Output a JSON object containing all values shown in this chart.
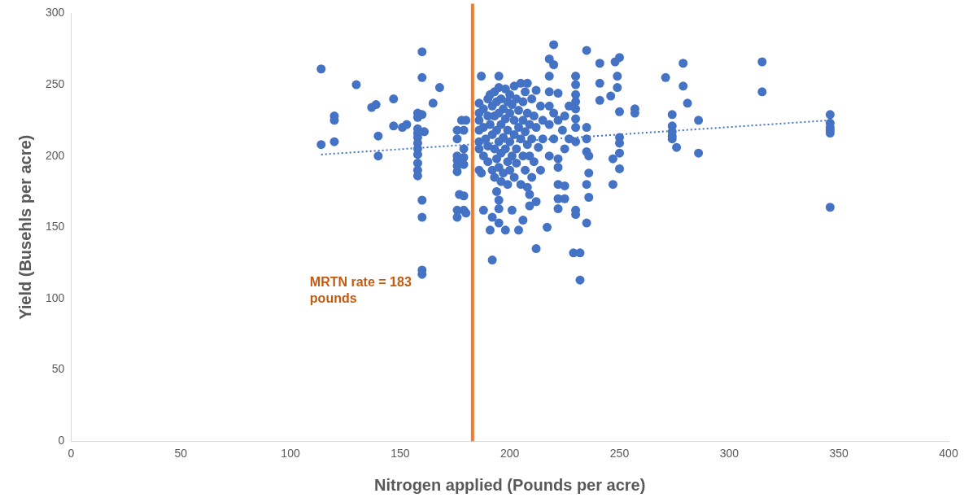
{
  "chart_data": {
    "type": "scatter",
    "xlabel": "Nitrogen applied (Pounds per acre)",
    "ylabel": "Yield (Busehls per acre)",
    "xlim": [
      0,
      400
    ],
    "xticks": [
      0,
      50,
      100,
      150,
      200,
      250,
      300,
      350,
      400
    ],
    "ylim": [
      0,
      300
    ],
    "yticks": [
      0,
      50,
      100,
      150,
      200,
      250,
      300
    ],
    "grid": false,
    "legend": false,
    "marker": "circle",
    "ref_lines": [
      {
        "axis": "x",
        "value": 183,
        "label": "MRTN rate = 183 pounds",
        "color": "#ed7d31"
      }
    ],
    "series": [
      {
        "color": "#4472c4",
        "x": [
          114,
          114,
          120,
          120,
          120,
          130,
          137,
          139,
          140,
          140,
          147,
          147,
          151,
          153,
          158,
          158,
          158,
          158,
          158,
          158,
          158,
          158,
          158,
          158,
          158,
          160,
          160,
          160,
          161,
          160,
          160,
          160,
          160,
          165,
          168,
          176,
          176,
          176,
          176,
          176,
          176,
          176,
          176,
          177,
          178,
          179,
          179,
          179,
          179,
          179,
          179,
          180,
          180,
          186,
          186,
          186,
          186,
          186,
          186,
          186,
          187,
          187,
          188,
          188,
          188,
          188,
          189,
          190,
          190,
          190,
          190,
          191,
          191,
          191,
          192,
          192,
          192,
          192,
          192,
          193,
          193,
          193,
          193,
          194,
          194,
          194,
          194,
          195,
          195,
          195,
          195,
          195,
          195,
          195,
          195,
          196,
          196,
          196,
          196,
          197,
          197,
          197,
          198,
          198,
          198,
          198,
          199,
          199,
          199,
          199,
          200,
          200,
          200,
          200,
          201,
          201,
          201,
          202,
          202,
          202,
          202,
          203,
          203,
          203,
          204,
          204,
          204,
          205,
          205,
          205,
          206,
          206,
          206,
          206,
          207,
          207,
          207,
          208,
          208,
          208,
          208,
          209,
          209,
          209,
          209,
          210,
          210,
          210,
          211,
          211,
          212,
          212,
          212,
          212,
          213,
          214,
          214,
          215,
          215,
          217,
          218,
          218,
          218,
          218,
          218,
          218,
          220,
          220,
          220,
          220,
          222,
          222,
          222,
          222,
          222,
          222,
          222,
          224,
          225,
          225,
          225,
          225,
          227,
          227,
          229,
          230,
          230,
          230,
          230,
          230,
          230,
          230,
          230,
          230,
          230,
          232,
          232,
          235,
          235,
          235,
          235,
          235,
          235,
          236,
          236,
          236,
          241,
          241,
          241,
          246,
          247,
          247,
          248,
          249,
          249,
          250,
          250,
          250,
          250,
          250,
          250,
          257,
          257,
          271,
          274,
          274,
          274,
          274,
          274,
          276,
          279,
          279,
          281,
          286,
          286,
          315,
          315,
          346,
          346,
          346,
          346,
          346,
          346
        ],
        "values": [
          261,
          208,
          228,
          225,
          210,
          250,
          234,
          236,
          214,
          200,
          240,
          221,
          220,
          222,
          230,
          227,
          219,
          216,
          213,
          209,
          205,
          201,
          195,
          190,
          186,
          273,
          255,
          229,
          217,
          169,
          157,
          120,
          117,
          237,
          248,
          218,
          212,
          200,
          197,
          193,
          189,
          162,
          157,
          173,
          225,
          218,
          205,
          199,
          194,
          172,
          162,
          160,
          225,
          237,
          230,
          225,
          218,
          210,
          205,
          190,
          256,
          188,
          233,
          220,
          200,
          162,
          212,
          240,
          228,
          207,
          196,
          243,
          222,
          148,
          235,
          215,
          190,
          157,
          127,
          245,
          228,
          205,
          185,
          238,
          218,
          198,
          175,
          256,
          248,
          230,
          210,
          192,
          169,
          163,
          153,
          240,
          222,
          202,
          182,
          233,
          213,
          188,
          247,
          226,
          205,
          148,
          238,
          218,
          196,
          180,
          243,
          230,
          210,
          190,
          236,
          200,
          162,
          249,
          225,
          215,
          185,
          240,
          205,
          195,
          232,
          220,
          148,
          251,
          212,
          180,
          238,
          225,
          200,
          155,
          245,
          217,
          190,
          251,
          230,
          208,
          178,
          222,
          200,
          173,
          165,
          240,
          212,
          185,
          228,
          196,
          246,
          220,
          168,
          135,
          206,
          235,
          190,
          225,
          212,
          150,
          268,
          256,
          245,
          235,
          222,
          200,
          278,
          264,
          230,
          212,
          244,
          225,
          198,
          192,
          180,
          170,
          163,
          218,
          228,
          205,
          179,
          170,
          235,
          212,
          132,
          256,
          250,
          243,
          238,
          233,
          226,
          220,
          210,
          162,
          159,
          132,
          113,
          274,
          220,
          212,
          203,
          180,
          153,
          200,
          188,
          171,
          265,
          251,
          239,
          242,
          198,
          180,
          266,
          256,
          248,
          269,
          231,
          213,
          209,
          202,
          191,
          233,
          230,
          255,
          229,
          221,
          217,
          214,
          212,
          206,
          265,
          249,
          237,
          225,
          202,
          266,
          245,
          229,
          223,
          220,
          218,
          216,
          164
        ]
      },
      {
        "type": "line",
        "color": "#4472c4",
        "marker": "none",
        "line_style": "dotted",
        "x": [
          114,
          346
        ],
        "values": [
          201,
          225
        ]
      }
    ]
  }
}
